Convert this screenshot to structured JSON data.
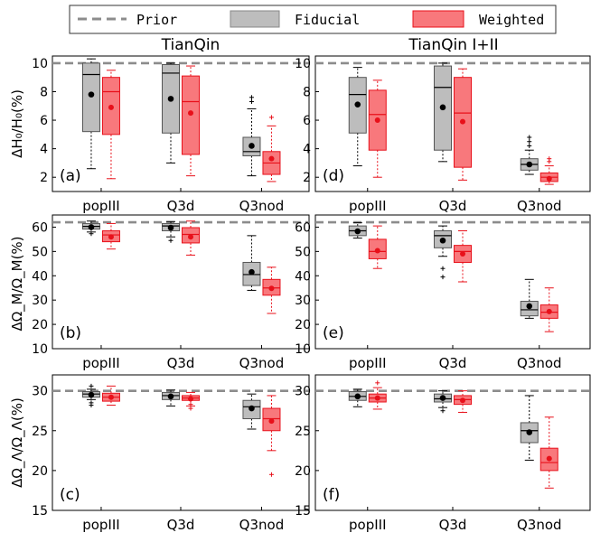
{
  "legend": {
    "prior": "Prior",
    "fiducial": "Fiducial",
    "weighted": "Weighted"
  },
  "colors": {
    "fiducial_fill": "#bdbdbd",
    "fiducial_line": "#000000",
    "weighted_fill": "#f8787c",
    "weighted_line": "#e8101a",
    "prior_line": "#8c8c8c"
  },
  "column_titles": [
    "TianQin",
    "TianQin I+II"
  ],
  "categories": [
    "popIII",
    "Q3d",
    "Q3nod"
  ],
  "row_ylabels": [
    "ΔH₀/H₀(%)",
    "ΔΩ_M/Ω_M(%)",
    "ΔΩ_Λ/Ω_Λ(%)"
  ],
  "chart_data": [
    {
      "type": "box",
      "panel_label": "(a)",
      "column": 0,
      "row": 0,
      "ylim": [
        1,
        10.5
      ],
      "yticks": [
        2,
        4,
        6,
        8,
        10
      ],
      "ytick_labels": [
        "2",
        "4",
        "6",
        "8",
        "10"
      ],
      "prior": 10,
      "series": [
        {
          "name": "Fiducial",
          "boxes": [
            {
              "category": "popIII",
              "whislo": 2.6,
              "q1": 5.2,
              "med": 9.2,
              "q3": 10.0,
              "whishi": 10.3,
              "mean": 7.8,
              "fliers": []
            },
            {
              "category": "Q3d",
              "whislo": 3.0,
              "q1": 5.1,
              "med": 9.3,
              "q3": 9.9,
              "whishi": 10.0,
              "mean": 7.5,
              "fliers": []
            },
            {
              "category": "Q3nod",
              "whislo": 2.1,
              "q1": 3.5,
              "med": 3.8,
              "q3": 4.8,
              "whishi": 6.8,
              "mean": 4.2,
              "fliers": [
                7.3,
                7.6
              ]
            }
          ]
        },
        {
          "name": "Weighted",
          "boxes": [
            {
              "category": "popIII",
              "whislo": 1.9,
              "q1": 5.0,
              "med": 8.0,
              "q3": 9.0,
              "whishi": 9.5,
              "mean": 6.9,
              "fliers": []
            },
            {
              "category": "Q3d",
              "whislo": 2.1,
              "q1": 3.6,
              "med": 7.3,
              "q3": 9.1,
              "whishi": 9.8,
              "mean": 6.5,
              "fliers": []
            },
            {
              "category": "Q3nod",
              "whislo": 1.7,
              "q1": 2.2,
              "med": 3.0,
              "q3": 3.8,
              "whishi": 5.6,
              "mean": 3.3,
              "fliers": [
                6.2
              ]
            }
          ]
        }
      ]
    },
    {
      "type": "box",
      "panel_label": "(d)",
      "column": 1,
      "row": 0,
      "ylim": [
        1,
        10.5
      ],
      "yticks": [
        2,
        4,
        6,
        8,
        10
      ],
      "ytick_labels": [
        "2",
        "4",
        "6",
        "8",
        "10"
      ],
      "prior": 10,
      "series": [
        {
          "name": "Fiducial",
          "boxes": [
            {
              "category": "popIII",
              "whislo": 2.8,
              "q1": 5.1,
              "med": 7.8,
              "q3": 9.0,
              "whishi": 9.7,
              "mean": 7.1,
              "fliers": []
            },
            {
              "category": "Q3d",
              "whislo": 3.1,
              "q1": 3.9,
              "med": 8.3,
              "q3": 9.8,
              "whishi": 10.0,
              "mean": 6.9,
              "fliers": []
            },
            {
              "category": "Q3nod",
              "whislo": 2.2,
              "q1": 2.5,
              "med": 2.9,
              "q3": 3.3,
              "whishi": 3.9,
              "mean": 2.9,
              "fliers": [
                4.2,
                4.5,
                4.8
              ]
            }
          ]
        },
        {
          "name": "Weighted",
          "boxes": [
            {
              "category": "popIII",
              "whislo": 2.0,
              "q1": 3.9,
              "med": 6.4,
              "q3": 8.1,
              "whishi": 8.8,
              "mean": 6.0,
              "fliers": []
            },
            {
              "category": "Q3d",
              "whislo": 1.8,
              "q1": 2.7,
              "med": 6.5,
              "q3": 9.0,
              "whishi": 9.6,
              "mean": 5.9,
              "fliers": []
            },
            {
              "category": "Q3nod",
              "whislo": 1.5,
              "q1": 1.7,
              "med": 2.0,
              "q3": 2.3,
              "whishi": 2.8,
              "mean": 1.9,
              "fliers": [
                3.1,
                3.3
              ]
            }
          ]
        }
      ]
    },
    {
      "type": "box",
      "panel_label": "(b)",
      "column": 0,
      "row": 1,
      "ylim": [
        10,
        65
      ],
      "yticks": [
        10,
        20,
        30,
        40,
        50,
        60
      ],
      "ytick_labels": [
        "10",
        "20",
        "30",
        "40",
        "50",
        "60"
      ],
      "prior": 62,
      "series": [
        {
          "name": "Fiducial",
          "boxes": [
            {
              "category": "popIII",
              "whislo": 58.0,
              "q1": 59.2,
              "med": 60.3,
              "q3": 61.5,
              "whishi": 62.5,
              "mean": 60.0,
              "fliers": [
                57.3
              ]
            },
            {
              "category": "Q3d",
              "whislo": 56.0,
              "q1": 58.5,
              "med": 60.5,
              "q3": 61.5,
              "whishi": 62.3,
              "mean": 59.8,
              "fliers": [
                54.5
              ]
            },
            {
              "category": "Q3nod",
              "whislo": 34.0,
              "q1": 36.0,
              "med": 40.5,
              "q3": 45.5,
              "whishi": 56.5,
              "mean": 41.5,
              "fliers": []
            }
          ]
        },
        {
          "name": "Weighted",
          "boxes": [
            {
              "category": "popIII",
              "whislo": 51.0,
              "q1": 54.0,
              "med": 56.8,
              "q3": 58.5,
              "whishi": 61.5,
              "mean": 56.0,
              "fliers": []
            },
            {
              "category": "Q3d",
              "whislo": 48.5,
              "q1": 53.5,
              "med": 57.0,
              "q3": 59.8,
              "whishi": 62.5,
              "mean": 56.0,
              "fliers": []
            },
            {
              "category": "Q3nod",
              "whislo": 24.5,
              "q1": 32.0,
              "med": 35.0,
              "q3": 38.5,
              "whishi": 43.5,
              "mean": 34.8,
              "fliers": []
            }
          ]
        }
      ]
    },
    {
      "type": "box",
      "panel_label": "(e)",
      "column": 1,
      "row": 1,
      "ylim": [
        10,
        65
      ],
      "yticks": [
        10,
        20,
        30,
        40,
        50,
        60
      ],
      "ytick_labels": [
        "10",
        "20",
        "30",
        "40",
        "50",
        "60"
      ],
      "prior": 62,
      "series": [
        {
          "name": "Fiducial",
          "boxes": [
            {
              "category": "popIII",
              "whislo": 55.5,
              "q1": 56.5,
              "med": 58.5,
              "q3": 60.5,
              "whishi": 61.8,
              "mean": 58.3,
              "fliers": []
            },
            {
              "category": "Q3d",
              "whislo": 48.0,
              "q1": 51.5,
              "med": 56.5,
              "q3": 58.5,
              "whishi": 60.5,
              "mean": 54.5,
              "fliers": [
                43.0,
                39.5
              ]
            },
            {
              "category": "Q3nod",
              "whislo": 22.5,
              "q1": 23.5,
              "med": 26.0,
              "q3": 29.5,
              "whishi": 38.5,
              "mean": 27.5,
              "fliers": []
            }
          ]
        },
        {
          "name": "Weighted",
          "boxes": [
            {
              "category": "popIII",
              "whislo": 43.0,
              "q1": 47.0,
              "med": 50.0,
              "q3": 55.0,
              "whishi": 60.5,
              "mean": 50.3,
              "fliers": []
            },
            {
              "category": "Q3d",
              "whislo": 37.5,
              "q1": 45.5,
              "med": 50.0,
              "q3": 52.5,
              "whishi": 58.5,
              "mean": 49.0,
              "fliers": []
            },
            {
              "category": "Q3nod",
              "whislo": 17.0,
              "q1": 22.5,
              "med": 25.0,
              "q3": 28.0,
              "whishi": 35.0,
              "mean": 25.3,
              "fliers": []
            }
          ]
        }
      ]
    },
    {
      "type": "box",
      "panel_label": "(c)",
      "column": 0,
      "row": 2,
      "ylim": [
        15,
        32
      ],
      "yticks": [
        15,
        20,
        25,
        30
      ],
      "ytick_labels": [
        "15",
        "20",
        "25",
        "30"
      ],
      "prior": 30,
      "series": [
        {
          "name": "Fiducial",
          "boxes": [
            {
              "category": "popIII",
              "whislo": 28.9,
              "q1": 29.2,
              "med": 29.6,
              "q3": 29.9,
              "whishi": 30.2,
              "mean": 29.5,
              "fliers": [
                28.5,
                28.2,
                30.6
              ]
            },
            {
              "category": "Q3d",
              "whislo": 28.1,
              "q1": 28.9,
              "med": 29.4,
              "q3": 29.8,
              "whishi": 30.1,
              "mean": 29.3,
              "fliers": []
            },
            {
              "category": "Q3nod",
              "whislo": 25.2,
              "q1": 26.5,
              "med": 28.0,
              "q3": 28.8,
              "whishi": 29.6,
              "mean": 27.8,
              "fliers": []
            }
          ]
        },
        {
          "name": "Weighted",
          "boxes": [
            {
              "category": "popIII",
              "whislo": 28.2,
              "q1": 28.7,
              "med": 29.2,
              "q3": 29.7,
              "whishi": 30.6,
              "mean": 29.2,
              "fliers": []
            },
            {
              "category": "Q3d",
              "whislo": 28.1,
              "q1": 28.8,
              "med": 29.1,
              "q3": 29.4,
              "whishi": 29.8,
              "mean": 29.0,
              "fliers": [
                28.3,
                27.8
              ]
            },
            {
              "category": "Q3nod",
              "whislo": 22.5,
              "q1": 25.0,
              "med": 26.5,
              "q3": 27.8,
              "whishi": 29.4,
              "mean": 26.2,
              "fliers": [
                19.5
              ]
            }
          ]
        }
      ]
    },
    {
      "type": "box",
      "panel_label": "(f)",
      "column": 1,
      "row": 2,
      "ylim": [
        15,
        32
      ],
      "yticks": [
        15,
        20,
        25,
        30
      ],
      "ytick_labels": [
        "15",
        "20",
        "25",
        "30"
      ],
      "prior": 30,
      "series": [
        {
          "name": "Fiducial",
          "boxes": [
            {
              "category": "popIII",
              "whislo": 28.0,
              "q1": 28.8,
              "med": 29.3,
              "q3": 29.9,
              "whishi": 30.2,
              "mean": 29.3,
              "fliers": []
            },
            {
              "category": "Q3d",
              "whislo": 27.9,
              "q1": 28.6,
              "med": 29.0,
              "q3": 29.6,
              "whishi": 30.0,
              "mean": 29.1,
              "fliers": [
                27.5
              ]
            },
            {
              "category": "Q3nod",
              "whislo": 21.3,
              "q1": 23.5,
              "med": 25.0,
              "q3": 26.0,
              "whishi": 29.4,
              "mean": 24.8,
              "fliers": []
            }
          ]
        },
        {
          "name": "Weighted",
          "boxes": [
            {
              "category": "popIII",
              "whislo": 27.7,
              "q1": 28.6,
              "med": 29.1,
              "q3": 29.6,
              "whishi": 30.4,
              "mean": 29.1,
              "fliers": [
                31.0
              ]
            },
            {
              "category": "Q3d",
              "whislo": 27.3,
              "q1": 28.3,
              "med": 28.9,
              "q3": 29.4,
              "whishi": 30.0,
              "mean": 28.8,
              "fliers": []
            },
            {
              "category": "Q3nod",
              "whislo": 17.8,
              "q1": 20.0,
              "med": 21.0,
              "q3": 22.8,
              "whishi": 26.7,
              "mean": 21.5,
              "fliers": []
            }
          ]
        }
      ]
    }
  ]
}
